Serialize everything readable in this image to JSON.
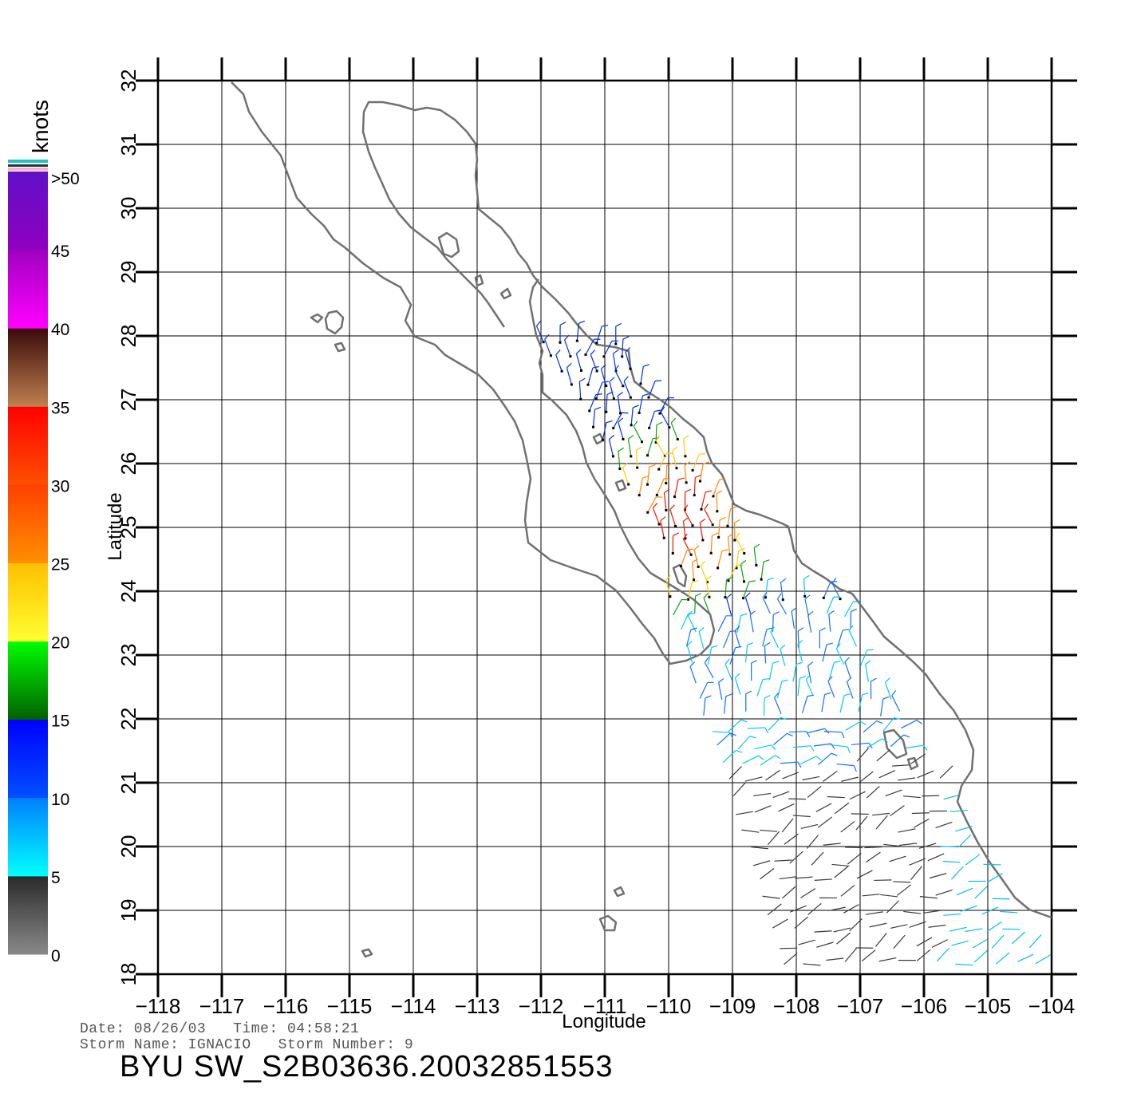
{
  "map": {
    "xlabel": "Longitude",
    "ylabel": "Latitude",
    "lon_ticks": [
      -118,
      -117,
      -116,
      -115,
      -114,
      -113,
      -112,
      -111,
      -110,
      -109,
      -108,
      -107,
      -106,
      -105,
      -104
    ],
    "lat_ticks": [
      18,
      19,
      20,
      21,
      22,
      23,
      24,
      25,
      26,
      27,
      28,
      29,
      30,
      31,
      32
    ],
    "lon_range": [
      -118,
      -104
    ],
    "lat_range": [
      18,
      32
    ],
    "grid": true
  },
  "color_scale": {
    "units": "knots",
    "labels": [
      "0",
      "5",
      "10",
      "15",
      "20",
      "25",
      "30",
      "35",
      "40",
      "45",
      ">50"
    ],
    "colors": {
      "calm": "#444444",
      "light": "#00e5ff",
      "moderate": "#0033ff",
      "fresh": "#00a000",
      "strong": "#ffd700",
      "near_gale": "#ff8000",
      "gale": "#ff2000",
      "storm": "#8b4513",
      "violent": "#ff00ff",
      "hurricane": "#6a0dd0"
    }
  },
  "info": {
    "date_line": "Date: 08/26/03   Time: 04:58:21",
    "storm_line": "Storm Name: IGNACIO   Storm Number: 9",
    "title": "BYU SW_S2B03636.20032851553"
  }
}
